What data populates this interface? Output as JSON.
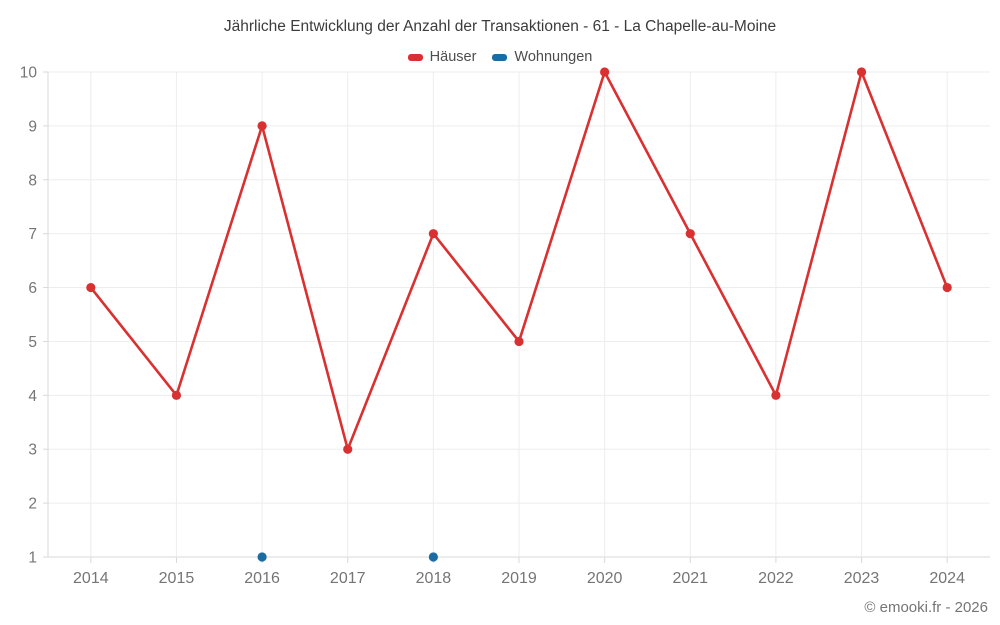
{
  "header": {
    "title": "Jährliche Entwicklung der Anzahl der Transaktionen - 61 - La Chapelle-au-Moine"
  },
  "footer": {
    "credit": "© emooki.fr - 2026"
  },
  "colors": {
    "haeuser": "#d93131",
    "wohnungen": "#1b6ca3",
    "grid": "#ededed",
    "axis": "#d9d9d9",
    "tick_label": "#757575",
    "title_text": "#3c3c3c",
    "legend_text": "#4d4d4d",
    "footer_text": "#757575"
  },
  "chart_data": {
    "type": "line",
    "title": "Jährliche Entwicklung der Anzahl der Transaktionen - 61 - La Chapelle-au-Moine",
    "categories": [
      "2014",
      "2015",
      "2016",
      "2017",
      "2018",
      "2019",
      "2020",
      "2021",
      "2022",
      "2023",
      "2024"
    ],
    "series": [
      {
        "name": "Häuser",
        "color": "#d93131",
        "values": [
          6,
          4,
          9,
          3,
          7,
          5,
          10,
          7,
          4,
          10,
          6
        ]
      },
      {
        "name": "Wohnungen",
        "color": "#1b6ca3",
        "values": [
          null,
          null,
          1,
          null,
          1,
          null,
          null,
          null,
          null,
          null,
          null
        ]
      }
    ],
    "xlabel": "",
    "ylabel": "",
    "ylim": [
      1,
      10
    ],
    "yticks": [
      1,
      2,
      3,
      4,
      5,
      6,
      7,
      8,
      9,
      10
    ],
    "grid": true,
    "legend_position": "top"
  }
}
